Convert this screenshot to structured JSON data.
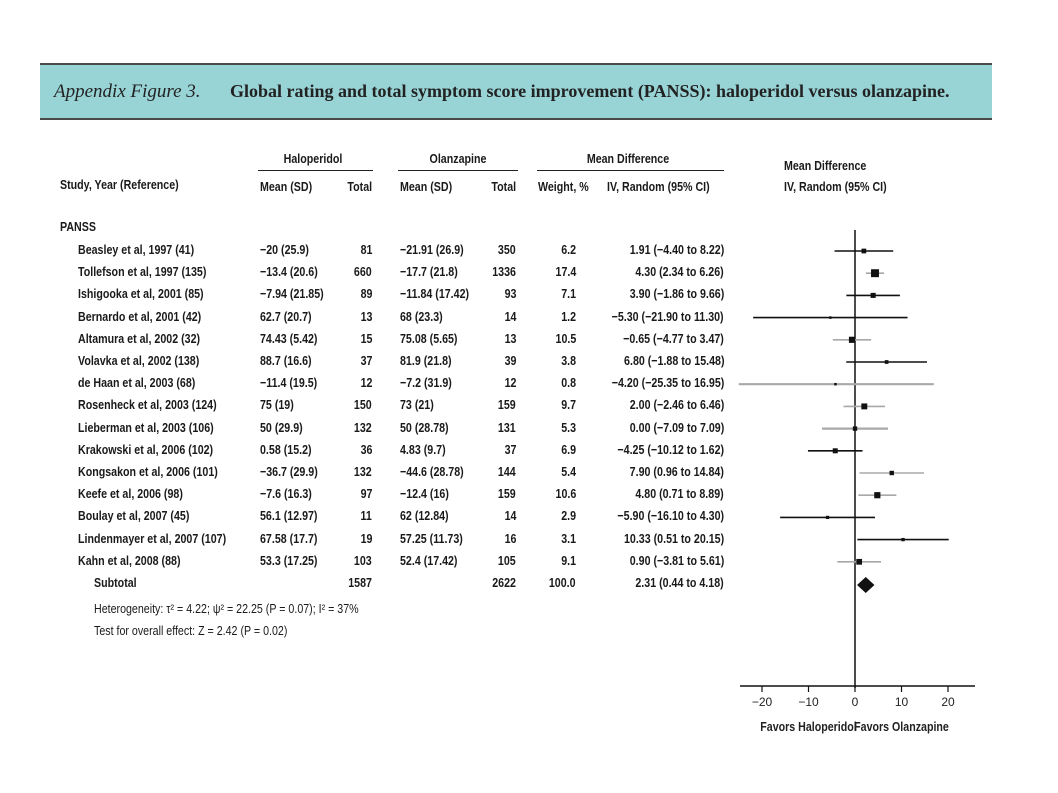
{
  "figure": {
    "label": "Appendix Figure 3.",
    "title": "Global rating and total symptom score improvement (PANSS): haloperidol versus olanzapine."
  },
  "table": {
    "col_study": "Study, Year (Reference)",
    "group1": "Haloperidol",
    "group2": "Olanzapine",
    "group3": "Mean Difference",
    "mean_sd": "Mean (SD)",
    "total": "Total",
    "weight": "Weight, %",
    "iv_random": "IV, Random (95% CI)",
    "plot_header_1": "Mean Difference",
    "plot_header_2": "IV, Random (95% CI)",
    "section": "PANSS",
    "rows": [
      {
        "study": "Beasley et al, 1997 (41)",
        "h_mean": "−20 (25.9)",
        "h_total": "81",
        "o_mean": "−21.91 (26.9)",
        "o_total": "350",
        "weight": "6.2",
        "ci": "1.91 (−4.40 to 8.22)"
      },
      {
        "study": "Tollefson et al, 1997 (135)",
        "h_mean": "−13.4 (20.6)",
        "h_total": "660",
        "o_mean": "−17.7 (21.8)",
        "o_total": "1336",
        "weight": "17.4",
        "ci": "4.30 (2.34 to 6.26)"
      },
      {
        "study": "Ishigooka et al, 2001 (85)",
        "h_mean": "−7.94 (21.85)",
        "h_total": "89",
        "o_mean": "−11.84 (17.42)",
        "o_total": "93",
        "weight": "7.1",
        "ci": "3.90 (−1.86 to 9.66)"
      },
      {
        "study": "Bernardo et al, 2001 (42)",
        "h_mean": "62.7 (20.7)",
        "h_total": "13",
        "o_mean": "68 (23.3)",
        "o_total": "14",
        "weight": "1.2",
        "ci": "−5.30 (−21.90 to 11.30)"
      },
      {
        "study": "Altamura et al, 2002 (32)",
        "h_mean": "74.43 (5.42)",
        "h_total": "15",
        "o_mean": "75.08 (5.65)",
        "o_total": "13",
        "weight": "10.5",
        "ci": "−0.65 (−4.77 to 3.47)"
      },
      {
        "study": "Volavka et al, 2002 (138)",
        "h_mean": "88.7 (16.6)",
        "h_total": "37",
        "o_mean": "81.9 (21.8)",
        "o_total": "39",
        "weight": "3.8",
        "ci": "6.80 (−1.88 to 15.48)"
      },
      {
        "study": "de Haan et al, 2003 (68)",
        "h_mean": "−11.4 (19.5)",
        "h_total": "12",
        "o_mean": "−7.2 (31.9)",
        "o_total": "12",
        "weight": "0.8",
        "ci": "−4.20 (−25.35 to 16.95)"
      },
      {
        "study": "Rosenheck et al, 2003 (124)",
        "h_mean": "75 (19)",
        "h_total": "150",
        "o_mean": "73 (21)",
        "o_total": "159",
        "weight": "9.7",
        "ci": "2.00 (−2.46 to 6.46)"
      },
      {
        "study": "Lieberman et al, 2003 (106)",
        "h_mean": "50 (29.9)",
        "h_total": "132",
        "o_mean": "50 (28.78)",
        "o_total": "131",
        "weight": "5.3",
        "ci": "0.00 (−7.09 to 7.09)"
      },
      {
        "study": "Krakowski et al, 2006 (102)",
        "h_mean": "0.58 (15.2)",
        "h_total": "36",
        "o_mean": "4.83 (9.7)",
        "o_total": "37",
        "weight": "6.9",
        "ci": "−4.25 (−10.12 to 1.62)"
      },
      {
        "study": "Kongsakon et al, 2006 (101)",
        "h_mean": "−36.7 (29.9)",
        "h_total": "132",
        "o_mean": "−44.6 (28.78)",
        "o_total": "144",
        "weight": "5.4",
        "ci": "7.90 (0.96 to 14.84)"
      },
      {
        "study": "Keefe et al, 2006 (98)",
        "h_mean": "−7.6 (16.3)",
        "h_total": "97",
        "o_mean": "−12.4 (16)",
        "o_total": "159",
        "weight": "10.6",
        "ci": "4.80 (0.71 to 8.89)"
      },
      {
        "study": "Boulay et al, 2007 (45)",
        "h_mean": "56.1 (12.97)",
        "h_total": "11",
        "o_mean": "62 (12.84)",
        "o_total": "14",
        "weight": "2.9",
        "ci": "−5.90 (−16.10 to 4.30)"
      },
      {
        "study": "Lindenmayer et al, 2007 (107)",
        "h_mean": "67.58 (17.7)",
        "h_total": "19",
        "o_mean": "57.25 (11.73)",
        "o_total": "16",
        "weight": "3.1",
        "ci": "10.33 (0.51 to 20.15)"
      },
      {
        "study": "Kahn et al, 2008 (88)",
        "h_mean": "53.3 (17.25)",
        "h_total": "103",
        "o_mean": "52.4 (17.42)",
        "o_total": "105",
        "weight": "9.1",
        "ci": "0.90 (−3.81 to 5.61)"
      }
    ],
    "subtotal": {
      "label": "Subtotal",
      "h_total": "1587",
      "o_total": "2622",
      "weight": "100.0",
      "ci": "2.31 (0.44 to 4.18)"
    },
    "heterogeneity": "Heterogeneity: τ² = 4.22; ψ² = 22.25 (P = 0.07); I² = 37%",
    "overall_effect": "Test for overall effect: Z = 2.42 (P = 0.02)"
  },
  "chart_data": {
    "type": "scatter",
    "subtype": "forest",
    "xlim": [
      -25,
      25
    ],
    "xticks": [
      -20,
      -10,
      0,
      10,
      20
    ],
    "reference_line": 0,
    "xlabel_left": "Favors Haloperidol",
    "xlabel_right": "Favors Olanzapine",
    "studies": [
      {
        "estimate": 1.91,
        "lower": -4.4,
        "upper": 8.22,
        "weight": 6.2
      },
      {
        "estimate": 4.3,
        "lower": 2.34,
        "upper": 6.26,
        "weight": 17.4
      },
      {
        "estimate": 3.9,
        "lower": -1.86,
        "upper": 9.66,
        "weight": 7.1
      },
      {
        "estimate": -5.3,
        "lower": -21.9,
        "upper": 11.3,
        "weight": 1.2
      },
      {
        "estimate": -0.65,
        "lower": -4.77,
        "upper": 3.47,
        "weight": 10.5
      },
      {
        "estimate": 6.8,
        "lower": -1.88,
        "upper": 15.48,
        "weight": 3.8
      },
      {
        "estimate": -4.2,
        "lower": -25.35,
        "upper": 16.95,
        "weight": 0.8
      },
      {
        "estimate": 2.0,
        "lower": -2.46,
        "upper": 6.46,
        "weight": 9.7
      },
      {
        "estimate": 0.0,
        "lower": -7.09,
        "upper": 7.09,
        "weight": 5.3
      },
      {
        "estimate": -4.25,
        "lower": -10.12,
        "upper": 1.62,
        "weight": 6.9
      },
      {
        "estimate": 7.9,
        "lower": 0.96,
        "upper": 14.84,
        "weight": 5.4
      },
      {
        "estimate": 4.8,
        "lower": 0.71,
        "upper": 8.89,
        "weight": 10.6
      },
      {
        "estimate": -5.9,
        "lower": -16.1,
        "upper": 4.3,
        "weight": 2.9
      },
      {
        "estimate": 10.33,
        "lower": 0.51,
        "upper": 20.15,
        "weight": 3.1
      },
      {
        "estimate": 0.9,
        "lower": -3.81,
        "upper": 5.61,
        "weight": 9.1
      }
    ],
    "pooled": {
      "estimate": 2.31,
      "lower": 0.44,
      "upper": 4.18
    },
    "colors": {
      "black_ci": "#111111",
      "gray_ci": "#a8a8a8",
      "marker": "#111111"
    }
  }
}
